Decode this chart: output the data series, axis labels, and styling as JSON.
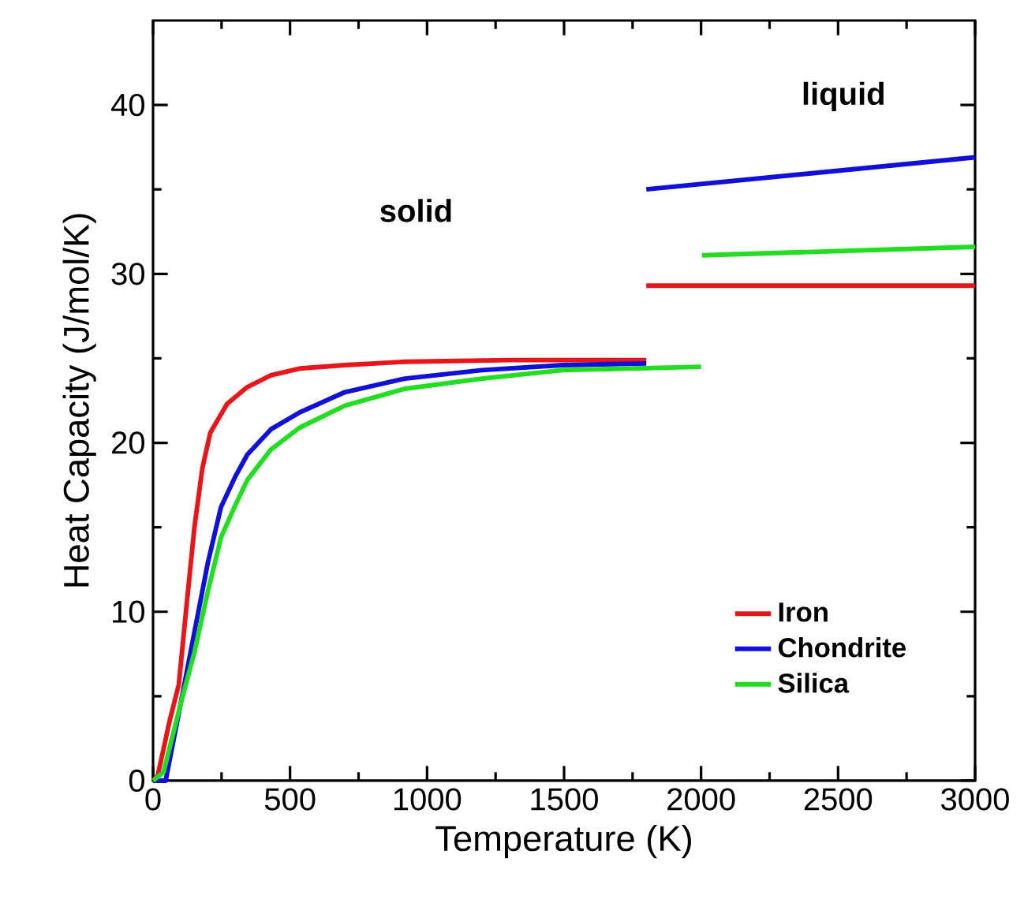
{
  "chart_data": {
    "type": "line",
    "xlabel": "Temperature (K)",
    "ylabel": "Heat Capacity (J/mol/K)",
    "annotations": [
      "solid",
      "liquid"
    ],
    "xlim": [
      0,
      3000
    ],
    "xticks": [
      0,
      500,
      1000,
      1500,
      2000,
      2500,
      3000
    ],
    "ylim": [
      0,
      45
    ],
    "yticks": [
      0,
      10,
      20,
      30,
      40
    ],
    "grid": false,
    "legend": "bottom right",
    "marker": "none",
    "line_style": "solid",
    "series": [
      {
        "name": "Iron",
        "color": "#e8161b",
        "x": [
          0,
          17,
          60,
          94,
          120,
          151,
          180,
          209,
          270,
          344,
          430,
          535,
          700,
          919,
          1300,
          1800
        ],
        "values": [
          0,
          0.3,
          3.5,
          5.7,
          10,
          15,
          18.5,
          20.6,
          22.3,
          23.3,
          24,
          24.4,
          24.6,
          24.8,
          24.9,
          24.9
        ]
      },
      {
        "name": "Chondrite",
        "color": "#1010d8",
        "x": [
          0,
          46,
          100,
          151,
          200,
          248,
          300,
          344,
          430,
          535,
          700,
          919,
          1200,
          1495,
          1800
        ],
        "values": [
          0,
          0,
          4.5,
          8.8,
          12.9,
          16.2,
          18,
          19.3,
          20.8,
          21.8,
          23,
          23.8,
          24.3,
          24.6,
          24.7
        ]
      },
      {
        "name": "Silica",
        "color": "#22dd22",
        "x": [
          0,
          38,
          100,
          151,
          200,
          248,
          300,
          344,
          430,
          535,
          700,
          919,
          1200,
          1495,
          2000
        ],
        "values": [
          0,
          0.5,
          4.5,
          7.6,
          11.2,
          14.4,
          16.3,
          17.8,
          19.6,
          20.9,
          22.2,
          23.2,
          23.8,
          24.3,
          24.5
        ]
      },
      {
        "color": "#e8161b",
        "x": [
          1800,
          3000
        ],
        "values": [
          29.3,
          29.3
        ]
      },
      {
        "color": "#1010d8",
        "x": [
          1800,
          3000
        ],
        "values": [
          35.0,
          36.9
        ]
      },
      {
        "color": "#22dd22",
        "x": [
          2003,
          3000
        ],
        "values": [
          31.1,
          31.6
        ]
      }
    ]
  }
}
